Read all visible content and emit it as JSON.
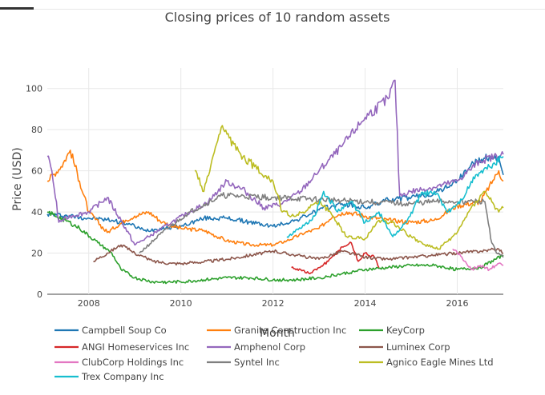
{
  "chart_data": {
    "type": "line",
    "title": "Closing prices of 10 random assets",
    "xlabel": "Month",
    "ylabel": "Price (USD)",
    "xlim": [
      2007.1,
      2017.0
    ],
    "ylim": [
      0,
      110
    ],
    "xticks": [
      2008,
      2010,
      2012,
      2014,
      2016
    ],
    "yticks": [
      0,
      20,
      40,
      60,
      80,
      100
    ],
    "grid": true,
    "legend_position": "bottom",
    "series": [
      {
        "name": "Campbell Soup Co",
        "color": "#1f77b4",
        "points": [
          [
            2007.1,
            39
          ],
          [
            2007.6,
            38
          ],
          [
            2008.0,
            37
          ],
          [
            2008.5,
            36
          ],
          [
            2008.9,
            34
          ],
          [
            2009.2,
            31
          ],
          [
            2009.6,
            32
          ],
          [
            2010.0,
            33
          ],
          [
            2010.5,
            37
          ],
          [
            2011.0,
            37
          ],
          [
            2011.5,
            35
          ],
          [
            2012.0,
            33
          ],
          [
            2012.5,
            36
          ],
          [
            2013.0,
            41
          ],
          [
            2013.5,
            44
          ],
          [
            2014.0,
            42
          ],
          [
            2014.5,
            46
          ],
          [
            2015.0,
            47
          ],
          [
            2015.5,
            49
          ],
          [
            2016.0,
            55
          ],
          [
            2016.3,
            63
          ],
          [
            2016.6,
            66
          ],
          [
            2016.9,
            67
          ],
          [
            2017.0,
            58
          ]
        ]
      },
      {
        "name": "Granite Construction Inc",
        "color": "#ff7f0e",
        "points": [
          [
            2007.1,
            55
          ],
          [
            2007.4,
            62
          ],
          [
            2007.6,
            70
          ],
          [
            2007.8,
            55
          ],
          [
            2008.0,
            40
          ],
          [
            2008.4,
            30
          ],
          [
            2008.8,
            36
          ],
          [
            2009.0,
            38
          ],
          [
            2009.3,
            40
          ],
          [
            2009.6,
            35
          ],
          [
            2010.0,
            32
          ],
          [
            2010.5,
            31
          ],
          [
            2011.0,
            26
          ],
          [
            2011.5,
            24
          ],
          [
            2012.0,
            24
          ],
          [
            2012.3,
            26
          ],
          [
            2012.7,
            30
          ],
          [
            2013.0,
            32
          ],
          [
            2013.3,
            38
          ],
          [
            2013.6,
            40
          ],
          [
            2014.0,
            38
          ],
          [
            2014.5,
            36
          ],
          [
            2015.0,
            35
          ],
          [
            2015.5,
            36
          ],
          [
            2016.0,
            43
          ],
          [
            2016.5,
            45
          ],
          [
            2016.9,
            60
          ],
          [
            2017.0,
            55
          ]
        ]
      },
      {
        "name": "KeyCorp",
        "color": "#2ca02c",
        "points": [
          [
            2007.1,
            40
          ],
          [
            2007.5,
            36
          ],
          [
            2007.8,
            32
          ],
          [
            2008.2,
            25
          ],
          [
            2008.5,
            20
          ],
          [
            2008.7,
            12
          ],
          [
            2009.0,
            8
          ],
          [
            2009.4,
            6
          ],
          [
            2010.0,
            6
          ],
          [
            2010.5,
            7
          ],
          [
            2011.0,
            8
          ],
          [
            2011.5,
            8
          ],
          [
            2012.0,
            7
          ],
          [
            2012.5,
            7
          ],
          [
            2013.0,
            8
          ],
          [
            2013.5,
            10
          ],
          [
            2014.0,
            12
          ],
          [
            2014.5,
            13
          ],
          [
            2015.0,
            14
          ],
          [
            2015.5,
            14
          ],
          [
            2016.0,
            12
          ],
          [
            2016.5,
            13
          ],
          [
            2017.0,
            19
          ]
        ]
      },
      {
        "name": "ANGI Homeservices Inc",
        "color": "#d62728",
        "points": [
          [
            2012.4,
            13
          ],
          [
            2012.6,
            12
          ],
          [
            2012.8,
            10
          ],
          [
            2013.0,
            13
          ],
          [
            2013.2,
            16
          ],
          [
            2013.5,
            23
          ],
          [
            2013.7,
            25
          ],
          [
            2013.85,
            16
          ],
          [
            2014.0,
            20
          ],
          [
            2014.2,
            18
          ],
          [
            2014.3,
            13
          ]
        ]
      },
      {
        "name": "Amphenol Corp",
        "color": "#9467bd",
        "points": [
          [
            2007.1,
            67
          ],
          [
            2007.2,
            60
          ],
          [
            2007.35,
            35
          ],
          [
            2007.6,
            38
          ],
          [
            2008.0,
            40
          ],
          [
            2008.4,
            47
          ],
          [
            2008.7,
            36
          ],
          [
            2009.0,
            24
          ],
          [
            2009.3,
            28
          ],
          [
            2009.8,
            35
          ],
          [
            2010.2,
            40
          ],
          [
            2010.6,
            45
          ],
          [
            2011.0,
            55
          ],
          [
            2011.4,
            50
          ],
          [
            2011.8,
            42
          ],
          [
            2012.2,
            44
          ],
          [
            2012.6,
            50
          ],
          [
            2013.0,
            60
          ],
          [
            2013.5,
            72
          ],
          [
            2014.0,
            86
          ],
          [
            2014.5,
            95
          ],
          [
            2014.65,
            104
          ],
          [
            2014.75,
            48
          ],
          [
            2015.0,
            50
          ],
          [
            2015.5,
            52
          ],
          [
            2016.0,
            55
          ],
          [
            2016.5,
            65
          ],
          [
            2017.0,
            68
          ]
        ]
      },
      {
        "name": "Luminex Corp",
        "color": "#8c564b",
        "points": [
          [
            2008.1,
            16
          ],
          [
            2008.4,
            20
          ],
          [
            2008.7,
            24
          ],
          [
            2009.0,
            20
          ],
          [
            2009.4,
            16
          ],
          [
            2009.8,
            15
          ],
          [
            2010.1,
            15
          ],
          [
            2011.0,
            17
          ],
          [
            2012.0,
            21
          ],
          [
            2012.5,
            19
          ],
          [
            2013.0,
            17
          ],
          [
            2013.5,
            21
          ],
          [
            2014.0,
            18
          ],
          [
            2014.5,
            17
          ],
          [
            2015.0,
            18
          ],
          [
            2015.5,
            19
          ],
          [
            2016.0,
            20
          ],
          [
            2016.5,
            21
          ],
          [
            2016.9,
            22
          ],
          [
            2017.0,
            20
          ]
        ]
      },
      {
        "name": "ClubCorp Holdings Inc",
        "color": "#e377c2",
        "points": [
          [
            2015.9,
            22
          ],
          [
            2016.1,
            18
          ],
          [
            2016.3,
            12
          ],
          [
            2016.5,
            14
          ],
          [
            2016.7,
            12
          ],
          [
            2016.9,
            15
          ],
          [
            2017.0,
            14
          ]
        ]
      },
      {
        "name": "Syntel Inc",
        "color": "#7f7f7f",
        "points": [
          [
            2009.1,
            20
          ],
          [
            2009.6,
            30
          ],
          [
            2010.2,
            40
          ],
          [
            2010.9,
            48
          ],
          [
            2012.0,
            47
          ],
          [
            2013.0,
            46
          ],
          [
            2014.0,
            45
          ],
          [
            2015.0,
            44
          ],
          [
            2015.5,
            45
          ],
          [
            2016.0,
            45
          ],
          [
            2016.6,
            45
          ],
          [
            2016.75,
            25
          ],
          [
            2016.85,
            20
          ],
          [
            2017.0,
            18
          ]
        ]
      },
      {
        "name": "Agnico Eagle Mines Ltd",
        "color": "#bcbd22",
        "points": [
          [
            2010.3,
            60
          ],
          [
            2010.5,
            50
          ],
          [
            2010.9,
            82
          ],
          [
            2011.2,
            70
          ],
          [
            2011.6,
            62
          ],
          [
            2012.0,
            55
          ],
          [
            2012.2,
            40
          ],
          [
            2012.5,
            38
          ],
          [
            2012.8,
            42
          ],
          [
            2013.0,
            45
          ],
          [
            2013.3,
            38
          ],
          [
            2013.6,
            28
          ],
          [
            2014.0,
            27
          ],
          [
            2014.3,
            36
          ],
          [
            2014.6,
            35
          ],
          [
            2015.0,
            28
          ],
          [
            2015.3,
            24
          ],
          [
            2015.6,
            22
          ],
          [
            2016.0,
            30
          ],
          [
            2016.3,
            42
          ],
          [
            2016.6,
            50
          ],
          [
            2016.9,
            40
          ],
          [
            2017.0,
            42
          ]
        ]
      },
      {
        "name": "Trex Company Inc",
        "color": "#17becf",
        "points": [
          [
            2012.3,
            28
          ],
          [
            2012.6,
            32
          ],
          [
            2012.9,
            38
          ],
          [
            2013.1,
            50
          ],
          [
            2013.4,
            40
          ],
          [
            2013.7,
            45
          ],
          [
            2014.0,
            35
          ],
          [
            2014.3,
            40
          ],
          [
            2014.6,
            28
          ],
          [
            2014.9,
            35
          ],
          [
            2015.2,
            48
          ],
          [
            2015.5,
            50
          ],
          [
            2015.8,
            40
          ],
          [
            2016.1,
            46
          ],
          [
            2016.4,
            58
          ],
          [
            2016.7,
            62
          ],
          [
            2017.0,
            67
          ]
        ]
      }
    ]
  }
}
